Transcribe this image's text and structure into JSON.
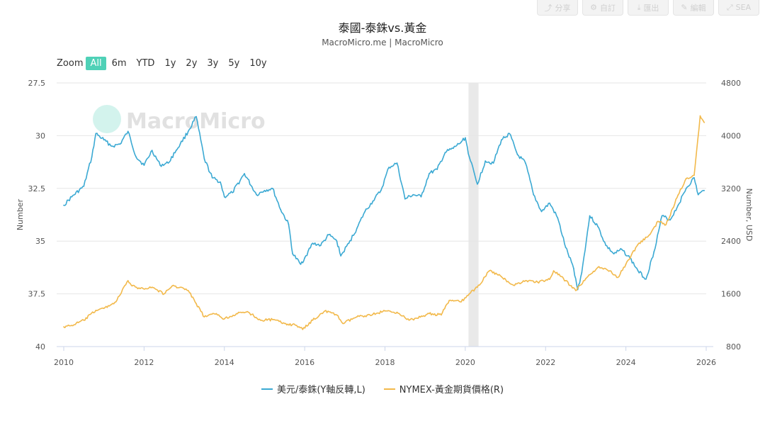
{
  "toolbar": {
    "buttons": [
      {
        "name": "share-button",
        "icon": "share-icon",
        "label": "分享"
      },
      {
        "name": "customize-button",
        "icon": "gear-icon",
        "label": "自訂"
      },
      {
        "name": "export-button",
        "icon": "download-icon",
        "label": "匯出"
      },
      {
        "name": "edit-button",
        "icon": "pencil-icon",
        "label": "編輯"
      },
      {
        "name": "expand-button",
        "icon": "expand-icon",
        "label": "SEA"
      }
    ]
  },
  "zoom": {
    "label": "Zoom",
    "options": [
      "All",
      "6m",
      "YTD",
      "1y",
      "2y",
      "3y",
      "5y",
      "10y"
    ],
    "selected": "All"
  },
  "watermark": "MacroMicro",
  "colors": {
    "thb": "#3ba9d3",
    "gold": "#f2b94b",
    "recession": "#e9e9e9",
    "accent": "#4fd1b7"
  },
  "chart_data": {
    "type": "line",
    "title": "泰國-泰銖vs.黃金",
    "subtitle": "MacroMicro.me | MacroMicro",
    "left_axis": {
      "label": "Number",
      "range": [
        27.5,
        40
      ],
      "ticks": [
        "27.5",
        "30",
        "32.5",
        "35",
        "37.5",
        "40"
      ],
      "inverted": true
    },
    "right_axis": {
      "label": "Number, USD",
      "range": [
        800,
        4800
      ],
      "ticks": [
        "4800",
        "4000",
        "3200",
        "2400",
        "1600",
        "800"
      ]
    },
    "x_axis": {
      "range": [
        2010,
        2026
      ],
      "ticks": [
        "2010",
        "2012",
        "2014",
        "2016",
        "2018",
        "2020",
        "2022",
        "2024",
        "2026"
      ]
    },
    "shaded_periods": [
      [
        2020.08,
        2020.33
      ]
    ],
    "legend_position": "bottom-center",
    "grid": true,
    "series": [
      {
        "name": "美元/泰銖(Y軸反轉,L)",
        "axis": "left",
        "points": [
          [
            2010.0,
            33.3
          ],
          [
            2010.2,
            32.9
          ],
          [
            2010.5,
            32.4
          ],
          [
            2010.7,
            31.0
          ],
          [
            2010.8,
            29.9
          ],
          [
            2011.0,
            30.2
          ],
          [
            2011.2,
            30.5
          ],
          [
            2011.4,
            30.4
          ],
          [
            2011.6,
            29.8
          ],
          [
            2011.8,
            31.0
          ],
          [
            2012.0,
            31.4
          ],
          [
            2012.2,
            30.7
          ],
          [
            2012.4,
            31.4
          ],
          [
            2012.6,
            31.3
          ],
          [
            2012.8,
            30.7
          ],
          [
            2012.9,
            30.4
          ],
          [
            2013.1,
            29.8
          ],
          [
            2013.3,
            29.1
          ],
          [
            2013.5,
            31.1
          ],
          [
            2013.7,
            32.0
          ],
          [
            2013.9,
            32.2
          ],
          [
            2014.0,
            32.9
          ],
          [
            2014.2,
            32.7
          ],
          [
            2014.5,
            31.8
          ],
          [
            2014.8,
            32.8
          ],
          [
            2015.0,
            32.6
          ],
          [
            2015.2,
            32.5
          ],
          [
            2015.4,
            33.5
          ],
          [
            2015.6,
            34.2
          ],
          [
            2015.7,
            35.6
          ],
          [
            2015.9,
            36.1
          ],
          [
            2016.0,
            35.8
          ],
          [
            2016.2,
            35.1
          ],
          [
            2016.4,
            35.2
          ],
          [
            2016.6,
            34.7
          ],
          [
            2016.8,
            35.0
          ],
          [
            2016.9,
            35.7
          ],
          [
            2017.1,
            35.1
          ],
          [
            2017.3,
            34.4
          ],
          [
            2017.5,
            33.6
          ],
          [
            2017.7,
            33.1
          ],
          [
            2017.9,
            32.6
          ],
          [
            2018.1,
            31.5
          ],
          [
            2018.3,
            31.3
          ],
          [
            2018.5,
            33.0
          ],
          [
            2018.7,
            32.8
          ],
          [
            2018.9,
            32.9
          ],
          [
            2019.1,
            31.8
          ],
          [
            2019.3,
            31.6
          ],
          [
            2019.5,
            30.8
          ],
          [
            2019.7,
            30.6
          ],
          [
            2019.9,
            30.3
          ],
          [
            2020.0,
            30.1
          ],
          [
            2020.1,
            31.0
          ],
          [
            2020.3,
            32.3
          ],
          [
            2020.5,
            31.2
          ],
          [
            2020.7,
            31.3
          ],
          [
            2020.9,
            30.2
          ],
          [
            2021.1,
            29.9
          ],
          [
            2021.3,
            30.9
          ],
          [
            2021.5,
            31.3
          ],
          [
            2021.7,
            32.8
          ],
          [
            2021.9,
            33.6
          ],
          [
            2022.1,
            33.2
          ],
          [
            2022.3,
            33.9
          ],
          [
            2022.5,
            35.3
          ],
          [
            2022.7,
            36.3
          ],
          [
            2022.8,
            37.3
          ],
          [
            2022.9,
            36.5
          ],
          [
            2023.1,
            33.8
          ],
          [
            2023.3,
            34.3
          ],
          [
            2023.5,
            35.2
          ],
          [
            2023.7,
            35.6
          ],
          [
            2023.9,
            35.4
          ],
          [
            2024.1,
            35.8
          ],
          [
            2024.3,
            36.4
          ],
          [
            2024.5,
            36.8
          ],
          [
            2024.7,
            35.5
          ],
          [
            2024.9,
            33.8
          ],
          [
            2025.1,
            34.0
          ],
          [
            2025.3,
            33.3
          ],
          [
            2025.5,
            32.5
          ],
          [
            2025.7,
            32.0
          ],
          [
            2025.8,
            32.8
          ],
          [
            2025.95,
            32.6
          ]
        ]
      },
      {
        "name": "NYMEX-黃金期貨價格(R)",
        "axis": "right",
        "points": [
          [
            2010.0,
            1100
          ],
          [
            2010.2,
            1120
          ],
          [
            2010.5,
            1200
          ],
          [
            2010.8,
            1350
          ],
          [
            2011.0,
            1380
          ],
          [
            2011.3,
            1480
          ],
          [
            2011.6,
            1800
          ],
          [
            2011.7,
            1720
          ],
          [
            2011.9,
            1680
          ],
          [
            2012.2,
            1700
          ],
          [
            2012.5,
            1600
          ],
          [
            2012.7,
            1720
          ],
          [
            2012.9,
            1700
          ],
          [
            2013.1,
            1650
          ],
          [
            2013.3,
            1450
          ],
          [
            2013.5,
            1250
          ],
          [
            2013.8,
            1300
          ],
          [
            2014.0,
            1220
          ],
          [
            2014.3,
            1300
          ],
          [
            2014.6,
            1320
          ],
          [
            2014.9,
            1200
          ],
          [
            2015.2,
            1210
          ],
          [
            2015.5,
            1150
          ],
          [
            2015.8,
            1120
          ],
          [
            2015.95,
            1060
          ],
          [
            2016.2,
            1200
          ],
          [
            2016.5,
            1340
          ],
          [
            2016.8,
            1280
          ],
          [
            2016.95,
            1150
          ],
          [
            2017.3,
            1250
          ],
          [
            2017.7,
            1290
          ],
          [
            2018.0,
            1340
          ],
          [
            2018.3,
            1320
          ],
          [
            2018.6,
            1200
          ],
          [
            2018.8,
            1230
          ],
          [
            2019.1,
            1300
          ],
          [
            2019.4,
            1280
          ],
          [
            2019.6,
            1500
          ],
          [
            2019.9,
            1480
          ],
          [
            2020.1,
            1600
          ],
          [
            2020.3,
            1700
          ],
          [
            2020.6,
            1950
          ],
          [
            2020.9,
            1860
          ],
          [
            2021.2,
            1730
          ],
          [
            2021.5,
            1800
          ],
          [
            2021.8,
            1780
          ],
          [
            2022.1,
            1820
          ],
          [
            2022.2,
            1950
          ],
          [
            2022.5,
            1800
          ],
          [
            2022.75,
            1650
          ],
          [
            2023.0,
            1830
          ],
          [
            2023.3,
            2000
          ],
          [
            2023.6,
            1950
          ],
          [
            2023.8,
            1850
          ],
          [
            2024.0,
            2050
          ],
          [
            2024.3,
            2350
          ],
          [
            2024.6,
            2500
          ],
          [
            2024.8,
            2700
          ],
          [
            2025.0,
            2650
          ],
          [
            2025.3,
            3100
          ],
          [
            2025.5,
            3350
          ],
          [
            2025.7,
            3400
          ],
          [
            2025.85,
            4300
          ],
          [
            2025.95,
            4200
          ]
        ]
      }
    ]
  }
}
